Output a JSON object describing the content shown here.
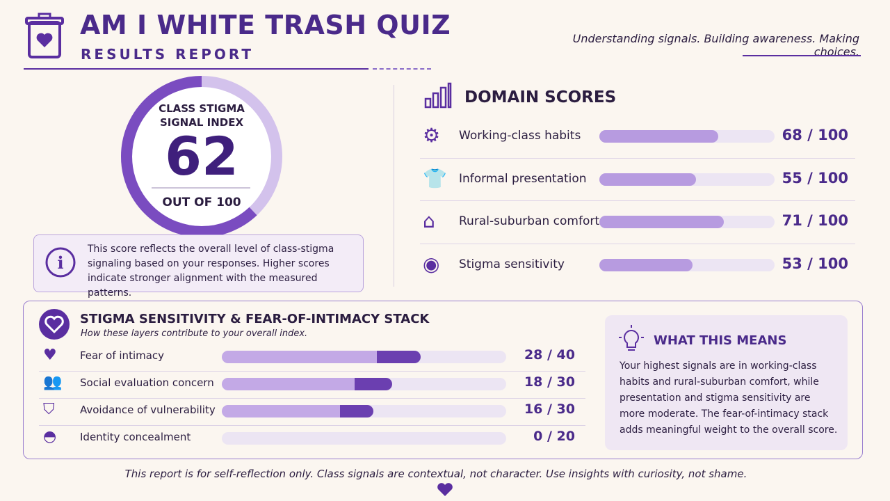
{
  "header": {
    "title": "AM I WHITE TRASH QUIZ",
    "subtitle": "RESULTS REPORT",
    "tagline": "Understanding signals. Building awareness. Making choices."
  },
  "index": {
    "heading": "CLASS STIGMA SIGNAL INDEX",
    "score": {
      "value": 62,
      "max": 100
    },
    "out_of": "OUT OF 100",
    "note": "This score reflects the overall level of class-stigma signaling based on your responses. Higher scores indicate stronger alignment with the measured patterns."
  },
  "domains": {
    "title": "DOMAIN SCORES",
    "items": [
      {
        "label": "Working-class habits",
        "value": 68,
        "max": 100,
        "display": "68 / 100"
      },
      {
        "label": "Informal presentation",
        "value": 55,
        "max": 100,
        "display": "55 / 100"
      },
      {
        "label": "Rural-suburban comfort",
        "value": 71,
        "max": 100,
        "display": "71 / 100"
      },
      {
        "label": "Stigma sensitivity",
        "value": 53,
        "max": 100,
        "display": "53 / 100"
      }
    ]
  },
  "stack": {
    "title": "STIGMA SENSITIVITY & FEAR-OF-INTIMACY STACK",
    "subtitle": "How these layers contribute to your overall index.",
    "items": [
      {
        "label": "Fear of intimacy",
        "value": 28,
        "max": 40,
        "display": "28 / 40"
      },
      {
        "label": "Social evaluation concern",
        "value": 18,
        "max": 30,
        "display": "18 / 30"
      },
      {
        "label": "Avoidance of vulnerability",
        "value": 16,
        "max": 30,
        "display": "16 / 30"
      },
      {
        "label": "Identity concealment",
        "value": 0,
        "max": 20,
        "display": "0 / 20"
      }
    ]
  },
  "meaning": {
    "title": "WHAT THIS MEANS",
    "text": "Your highest signals are in working-class habits and rural-suburban comfort, while presentation and stigma sensitivity are more moderate. The fear-of-intimacy stack adds meaningful weight to the overall score."
  },
  "footer": "This report is for self-reflection only. Class signals are contextual, not character. Use insights with curiosity, not shame."
}
